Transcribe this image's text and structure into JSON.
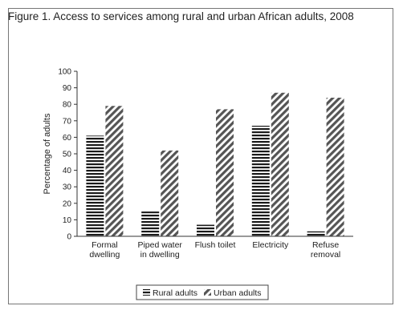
{
  "chart_data": {
    "type": "bar",
    "title": "Figure 1. Access to services among rural and urban African adults, 2008",
    "xlabel": "",
    "ylabel": "Percentage of adults",
    "ylim": [
      0,
      100
    ],
    "yticks": [
      0,
      10,
      20,
      30,
      40,
      50,
      60,
      70,
      80,
      90,
      100
    ],
    "categories": [
      [
        "Formal",
        "dwelling"
      ],
      [
        "Piped water",
        "in dwelling"
      ],
      [
        "Flush toilet"
      ],
      [
        "Electricity"
      ],
      [
        "Refuse",
        "removal"
      ]
    ],
    "series": [
      {
        "name": "Rural adults",
        "values": [
          61,
          15,
          7,
          67,
          3
        ],
        "pattern": "horizontal-lines",
        "color": "#1a1a1a"
      },
      {
        "name": "Urban adults",
        "values": [
          79,
          52,
          77,
          87,
          84
        ],
        "pattern": "diagonal-lines",
        "color": "#555555"
      }
    ],
    "legend_position": "bottom",
    "grid": false
  }
}
